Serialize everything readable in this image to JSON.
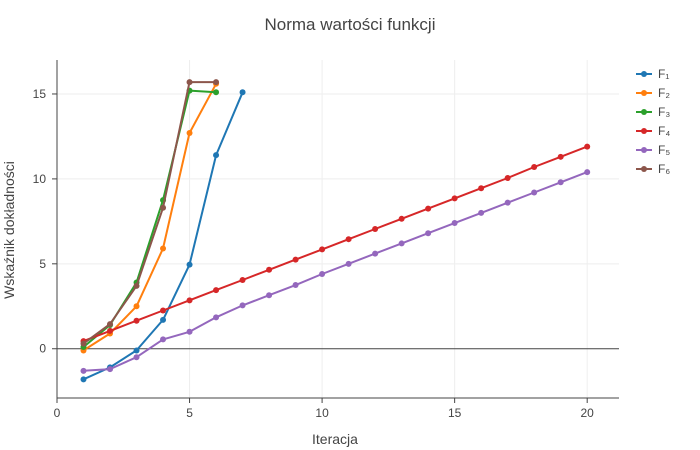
{
  "chart_data": {
    "type": "line",
    "title": "Norma wartości funkcji",
    "xlabel": "Iteracja",
    "ylabel": "Wskaźnik dokładności",
    "xlim": [
      0,
      21.2
    ],
    "ylim": [
      -2.9,
      17
    ],
    "xticks": [
      0,
      5,
      10,
      15,
      20
    ],
    "yticks": [
      0,
      5,
      10,
      15
    ],
    "grid": true,
    "zero_line": true,
    "legend_position": "right",
    "series": [
      {
        "name": "F₁",
        "color": "#1f77b4",
        "x": [
          1,
          2,
          3,
          4,
          5,
          6,
          7
        ],
        "y": [
          -1.8,
          -1.1,
          -0.1,
          1.7,
          4.95,
          11.4,
          15.1
        ]
      },
      {
        "name": "F₂",
        "color": "#ff7f0e",
        "x": [
          1,
          2,
          3,
          4,
          5,
          6
        ],
        "y": [
          -0.1,
          0.9,
          2.5,
          5.9,
          12.7,
          15.6
        ]
      },
      {
        "name": "F₃",
        "color": "#2ca02c",
        "x": [
          1,
          2,
          3,
          4,
          5,
          6
        ],
        "y": [
          0.1,
          1.4,
          3.9,
          8.75,
          15.2,
          15.1
        ]
      },
      {
        "name": "F₄",
        "color": "#d62728",
        "x": [
          1,
          2,
          3,
          4,
          5,
          6,
          7,
          8,
          9,
          10,
          11,
          12,
          13,
          14,
          15,
          16,
          17,
          18,
          19,
          20
        ],
        "y": [
          0.45,
          1.05,
          1.65,
          2.25,
          2.85,
          3.45,
          4.05,
          4.65,
          5.25,
          5.85,
          6.45,
          7.05,
          7.65,
          8.25,
          8.85,
          9.45,
          10.05,
          10.7,
          11.3,
          11.9
        ]
      },
      {
        "name": "F₅",
        "color": "#9467bd",
        "x": [
          1,
          2,
          3,
          4,
          5,
          6,
          7,
          8,
          9,
          10,
          11,
          12,
          13,
          14,
          15,
          16,
          17,
          18,
          19,
          20
        ],
        "y": [
          -1.3,
          -1.2,
          -0.5,
          0.55,
          1.0,
          1.85,
          2.55,
          3.15,
          3.75,
          4.4,
          5.0,
          5.6,
          6.2,
          6.8,
          7.4,
          8.0,
          8.6,
          9.2,
          9.8,
          10.4
        ]
      },
      {
        "name": "F₆",
        "color": "#8c564b",
        "x": [
          1,
          2,
          3,
          4,
          5,
          6
        ],
        "y": [
          0.3,
          1.45,
          3.7,
          8.3,
          15.7,
          15.7
        ]
      }
    ]
  }
}
